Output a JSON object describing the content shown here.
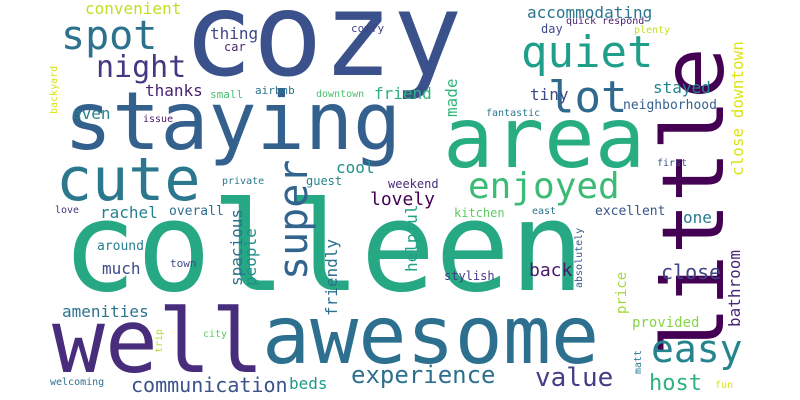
{
  "words": [
    {
      "text": "colleen",
      "color": "#26a884"
    },
    {
      "text": "cozy",
      "color": "#3b518b"
    },
    {
      "text": "awesome",
      "color": "#2d6f8e"
    },
    {
      "text": "staying",
      "color": "#34608d"
    },
    {
      "text": "area",
      "color": "#27ad81"
    },
    {
      "text": "little",
      "color": "#440154"
    },
    {
      "text": "well",
      "color": "#472d7b"
    },
    {
      "text": "cute",
      "color": "#2a778e"
    },
    {
      "text": "lot",
      "color": "#31688e"
    },
    {
      "text": "super",
      "color": "#32648e"
    },
    {
      "text": "enjoyed",
      "color": "#3bbb75"
    },
    {
      "text": "quiet",
      "color": "#1f9e89"
    },
    {
      "text": "spot",
      "color": "#2c728e"
    },
    {
      "text": "easy",
      "color": "#25848e"
    },
    {
      "text": "night",
      "color": "#453781"
    },
    {
      "text": "experience",
      "color": "#2d708e"
    },
    {
      "text": "value",
      "color": "#433e85"
    },
    {
      "text": "communication",
      "color": "#3b528b"
    },
    {
      "text": "host",
      "color": "#2eb37c"
    },
    {
      "text": "bathroom",
      "color": "#482878"
    },
    {
      "text": "close",
      "color": "#414487"
    },
    {
      "text": "close downtown",
      "color": "#dde318"
    },
    {
      "text": "accommodating",
      "color": "#2a768e"
    },
    {
      "text": "convenient",
      "color": "#bddf26"
    },
    {
      "text": "stayed",
      "color": "#25858e"
    },
    {
      "text": "tiny",
      "color": "#3e4989"
    },
    {
      "text": "neighborhood",
      "color": "#355f8d"
    },
    {
      "text": "friend",
      "color": "#2db27d"
    },
    {
      "text": "friendly",
      "color": "#2c728e"
    },
    {
      "text": "helpful",
      "color": "#20a386"
    },
    {
      "text": "lovely",
      "color": "#440154"
    },
    {
      "text": "spacious",
      "color": "#2e6e8e"
    },
    {
      "text": "people",
      "color": "#21918c"
    },
    {
      "text": "amenities",
      "color": "#2b748e"
    },
    {
      "text": "much",
      "color": "#3e4a89"
    },
    {
      "text": "rachel",
      "color": "#26818e"
    },
    {
      "text": "cool",
      "color": "#20928c"
    },
    {
      "text": "thanks",
      "color": "#482173"
    },
    {
      "text": "even",
      "color": "#27808e"
    },
    {
      "text": "thing",
      "color": "#3f4788"
    },
    {
      "text": "made",
      "color": "#31b57b"
    },
    {
      "text": "back",
      "color": "#48186a"
    },
    {
      "text": "beds",
      "color": "#1f998a"
    },
    {
      "text": "one",
      "color": "#2a788e"
    },
    {
      "text": "price",
      "color": "#a0da39"
    },
    {
      "text": "provided",
      "color": "#86d549"
    },
    {
      "text": "excellent",
      "color": "#3a548c"
    },
    {
      "text": "stylish",
      "color": "#443983"
    },
    {
      "text": "weekend",
      "color": "#472c7a"
    },
    {
      "text": "kitchen",
      "color": "#5ec962"
    },
    {
      "text": "guest",
      "color": "#26828e"
    },
    {
      "text": "overall",
      "color": "#2e6e8e"
    },
    {
      "text": "around",
      "color": "#277f8e"
    },
    {
      "text": "town",
      "color": "#3e4a89"
    },
    {
      "text": "day",
      "color": "#3e4c8a"
    },
    {
      "text": "car",
      "color": "#482878"
    },
    {
      "text": "small",
      "color": "#46c06f"
    },
    {
      "text": "airbnb",
      "color": "#2c728e"
    },
    {
      "text": "downtown",
      "color": "#4ac16d"
    },
    {
      "text": "comfy",
      "color": "#414487"
    },
    {
      "text": "quick respond",
      "color": "#481b6d"
    },
    {
      "text": "plenty",
      "color": "#c2df23"
    },
    {
      "text": "fantastic",
      "color": "#2b758e"
    },
    {
      "text": "issue",
      "color": "#48186a"
    },
    {
      "text": "backyard",
      "color": "#d8e219"
    },
    {
      "text": "private",
      "color": "#2a788e"
    },
    {
      "text": "love",
      "color": "#46337e"
    },
    {
      "text": "first",
      "color": "#3b528b"
    },
    {
      "text": "east",
      "color": "#2c728e"
    },
    {
      "text": "absolutely",
      "color": "#375b8d"
    },
    {
      "text": "trip",
      "color": "#b5de2b"
    },
    {
      "text": "city",
      "color": "#5ec962"
    },
    {
      "text": "matt",
      "color": "#2a788e"
    },
    {
      "text": "fun",
      "color": "#dde318"
    },
    {
      "text": "welcoming",
      "color": "#2c718e"
    }
  ]
}
